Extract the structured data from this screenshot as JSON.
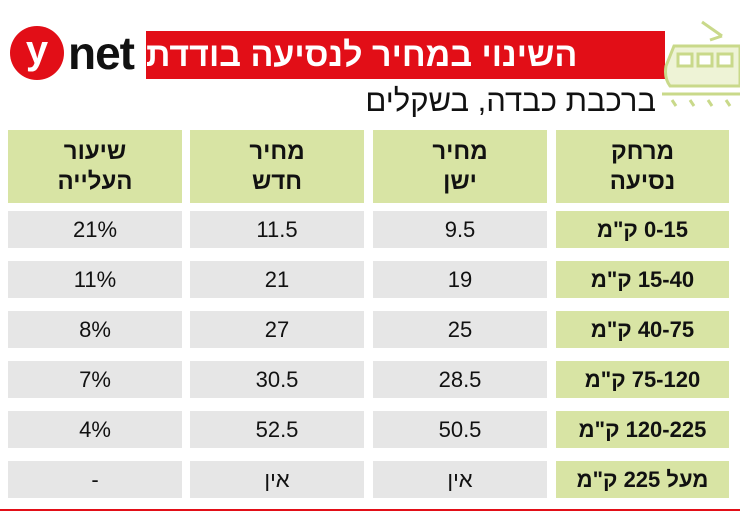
{
  "brand": {
    "logo_letter": "y",
    "logo_word": "net"
  },
  "title": "השינוי במחיר לנסיעה בודדת",
  "subtitle": "ברכבת כבדה, בשקלים",
  "icon": "train-icon",
  "colors": {
    "brand_red": "#e20e17",
    "header_green": "#d8e4a4",
    "row_gray": "#e6e6e6"
  },
  "table": {
    "headers": {
      "distance": "מרחק\nנסיעה",
      "old_price": "מחיר\nישן",
      "new_price": "מחיר\nחדש",
      "increase": "שיעור\nהעלייה"
    },
    "rows": [
      {
        "distance": "0-15 ק\"מ",
        "old_price": "9.5",
        "new_price": "11.5",
        "increase": "21%"
      },
      {
        "distance": "15-40 ק\"מ",
        "old_price": "19",
        "new_price": "21",
        "increase": "11%"
      },
      {
        "distance": "40-75 ק\"מ",
        "old_price": "25",
        "new_price": "27",
        "increase": "8%"
      },
      {
        "distance": "75-120 ק\"מ",
        "old_price": "28.5",
        "new_price": "30.5",
        "increase": "7%"
      },
      {
        "distance": "120-225 ק\"מ",
        "old_price": "50.5",
        "new_price": "52.5",
        "increase": "4%"
      },
      {
        "distance": "מעל 225 ק\"מ",
        "old_price": "אין",
        "new_price": "אין",
        "increase": "-"
      }
    ]
  }
}
